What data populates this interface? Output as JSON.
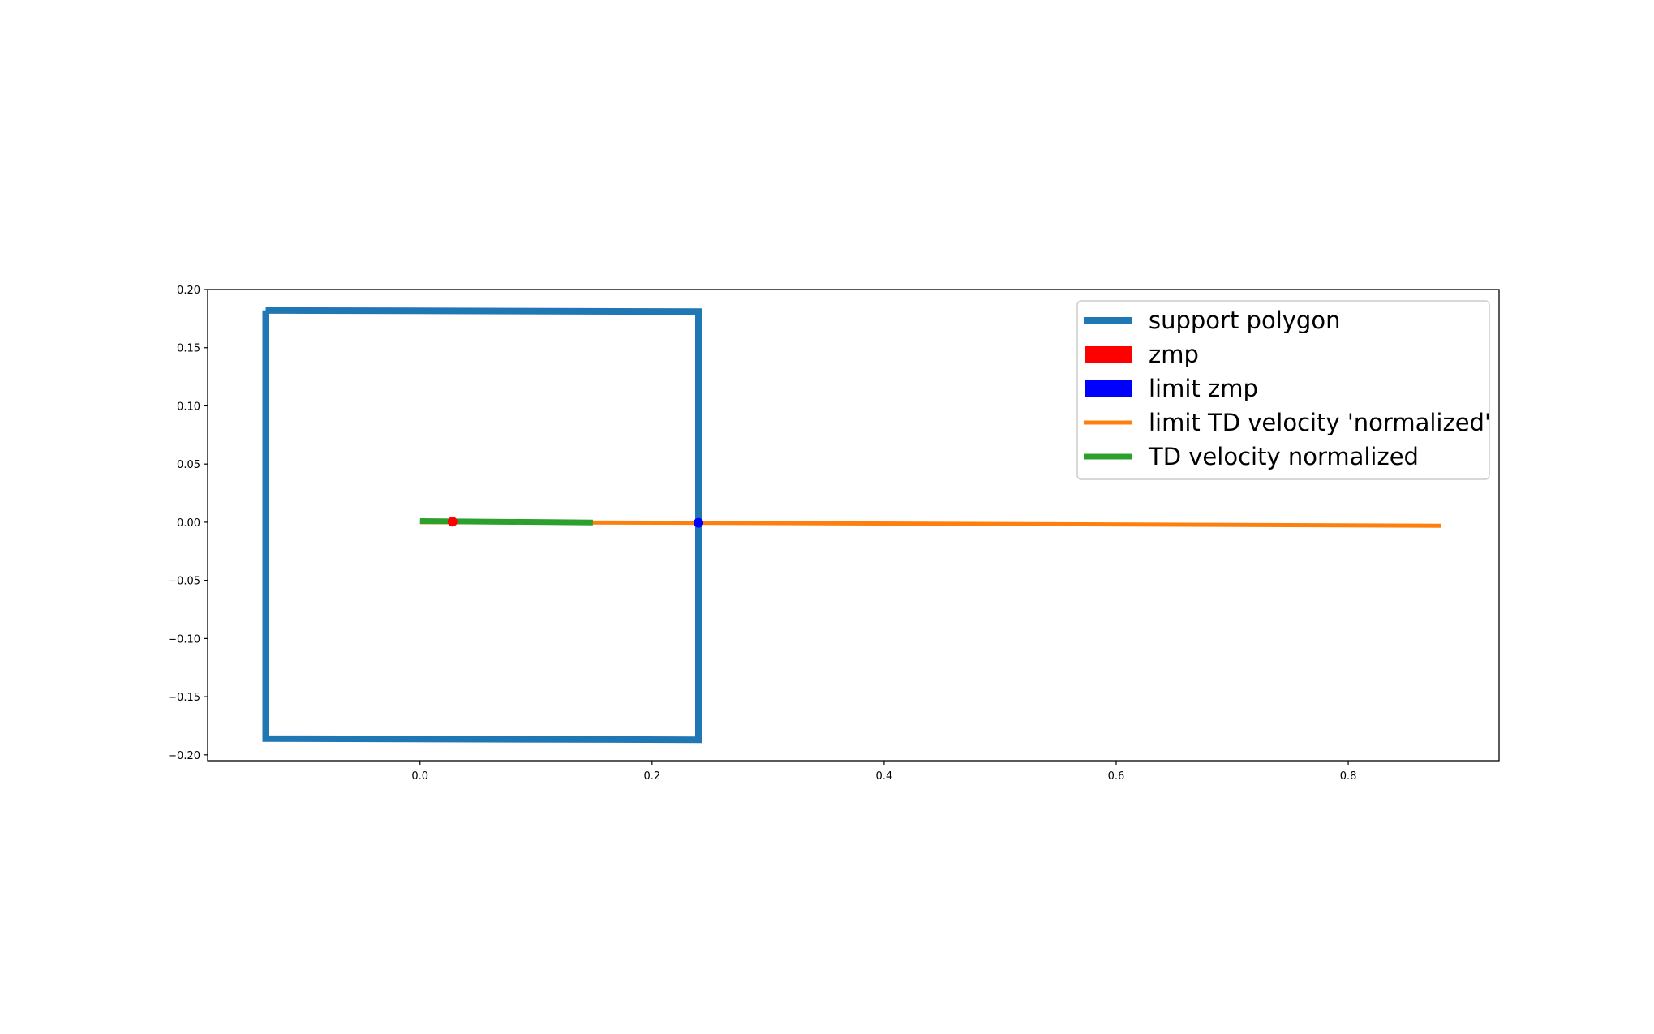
{
  "chart_data": {
    "type": "line",
    "title": "",
    "xlabel": "",
    "ylabel": "",
    "xlim": [
      -0.183,
      0.93
    ],
    "ylim": [
      -0.205,
      0.2
    ],
    "grid": false,
    "legend_position": "upper right",
    "xticks": [
      {
        "value": 0.0,
        "label": "0.0"
      },
      {
        "value": 0.2,
        "label": "0.2"
      },
      {
        "value": 0.4,
        "label": "0.4"
      },
      {
        "value": 0.6,
        "label": "0.6"
      },
      {
        "value": 0.8,
        "label": "0.8"
      }
    ],
    "yticks": [
      {
        "value": 0.2,
        "label": "0.20"
      },
      {
        "value": 0.15,
        "label": "0.15"
      },
      {
        "value": 0.1,
        "label": "0.10"
      },
      {
        "value": 0.05,
        "label": "0.05"
      },
      {
        "value": 0.0,
        "label": "0.00"
      },
      {
        "value": -0.05,
        "label": "−0.05"
      },
      {
        "value": -0.1,
        "label": "−0.10"
      },
      {
        "value": -0.15,
        "label": "−0.15"
      },
      {
        "value": -0.2,
        "label": "−0.20"
      }
    ],
    "series": [
      {
        "name": "support polygon",
        "kind": "line",
        "color": "#1f77b4",
        "x": [
          -0.133,
          0.24,
          0.24,
          -0.133,
          -0.133
        ],
        "y": [
          0.182,
          0.181,
          -0.187,
          -0.186,
          0.182
        ]
      },
      {
        "name": "limit TD velocity 'normalized'",
        "kind": "line",
        "color": "#ff7f0e",
        "x": [
          0.0,
          0.24,
          0.88
        ],
        "y": [
          0.0,
          -0.0005,
          -0.003
        ]
      },
      {
        "name": "TD velocity normalized",
        "kind": "line",
        "color": "#2ca02c",
        "x": [
          0.0,
          0.149
        ],
        "y": [
          0.001,
          -0.0002
        ]
      },
      {
        "name": "zmp",
        "kind": "point",
        "color": "#ff0000",
        "x": [
          0.028
        ],
        "y": [
          0.0005
        ]
      },
      {
        "name": "limit zmp",
        "kind": "point",
        "color": "#0000ff",
        "x": [
          0.24
        ],
        "y": [
          -0.0005
        ]
      }
    ],
    "legend": [
      {
        "label": "support polygon",
        "style": "line",
        "color": "#1f77b4"
      },
      {
        "label": "zmp",
        "style": "patch",
        "color": "#ff0000"
      },
      {
        "label": "limit zmp",
        "style": "patch",
        "color": "#0000ff"
      },
      {
        "label": "limit TD velocity 'normalized'",
        "style": "line",
        "color": "#ff7f0e"
      },
      {
        "label": "TD velocity normalized",
        "style": "line",
        "color": "#2ca02c"
      }
    ]
  }
}
